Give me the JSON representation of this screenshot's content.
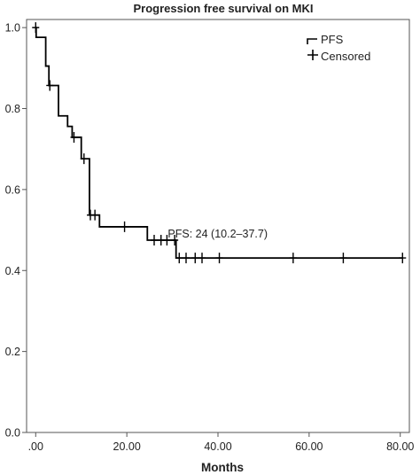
{
  "chart_data": {
    "type": "line",
    "title": "Progression free survival on MKI",
    "xlabel": "Months",
    "ylabel": "",
    "xlim": [
      -2,
      82
    ],
    "ylim": [
      0,
      1.02
    ],
    "x_ticks": [
      0,
      20,
      40,
      60,
      80
    ],
    "x_tick_labels": [
      ".00",
      "20.00",
      "40.00",
      "60.00",
      "80.00"
    ],
    "y_ticks": [
      0,
      0.2,
      0.4,
      0.6,
      0.8,
      1.0
    ],
    "y_tick_labels": [
      "0.0",
      "0.2",
      "0.4",
      "0.6",
      "0.8",
      "1.0"
    ],
    "grid": false,
    "legend_position": "top-right",
    "colors": {
      "line": "#000000",
      "text": "#222222",
      "axis": "#555555"
    },
    "series": [
      {
        "name": "PFS",
        "step": true,
        "x": [
          0,
          0.1,
          2.2,
          2.9,
          5.0,
          7.0,
          8.0,
          10.0,
          11.8,
          14.0,
          24.5,
          30.8,
          80.5
        ],
        "y": [
          1.0,
          0.976,
          0.905,
          0.857,
          0.782,
          0.756,
          0.729,
          0.676,
          0.537,
          0.508,
          0.475,
          0.431,
          0.431
        ]
      },
      {
        "name": "Censored",
        "marker": "+",
        "x": [
          0,
          3.1,
          8.4,
          10.6,
          12.0,
          13.0,
          19.5,
          26.0,
          27.5,
          28.8,
          30.5,
          31.5,
          33.0,
          35.0,
          36.5,
          40.3,
          56.5,
          67.5,
          80.5
        ],
        "y": [
          1.0,
          0.857,
          0.729,
          0.676,
          0.537,
          0.537,
          0.508,
          0.475,
          0.475,
          0.475,
          0.475,
          0.431,
          0.431,
          0.431,
          0.431,
          0.431,
          0.431,
          0.431,
          0.431
        ]
      }
    ],
    "annotations": [
      {
        "text": "PFS: 24 (10.2–37.7)",
        "x": 29,
        "y": 0.49
      }
    ]
  }
}
